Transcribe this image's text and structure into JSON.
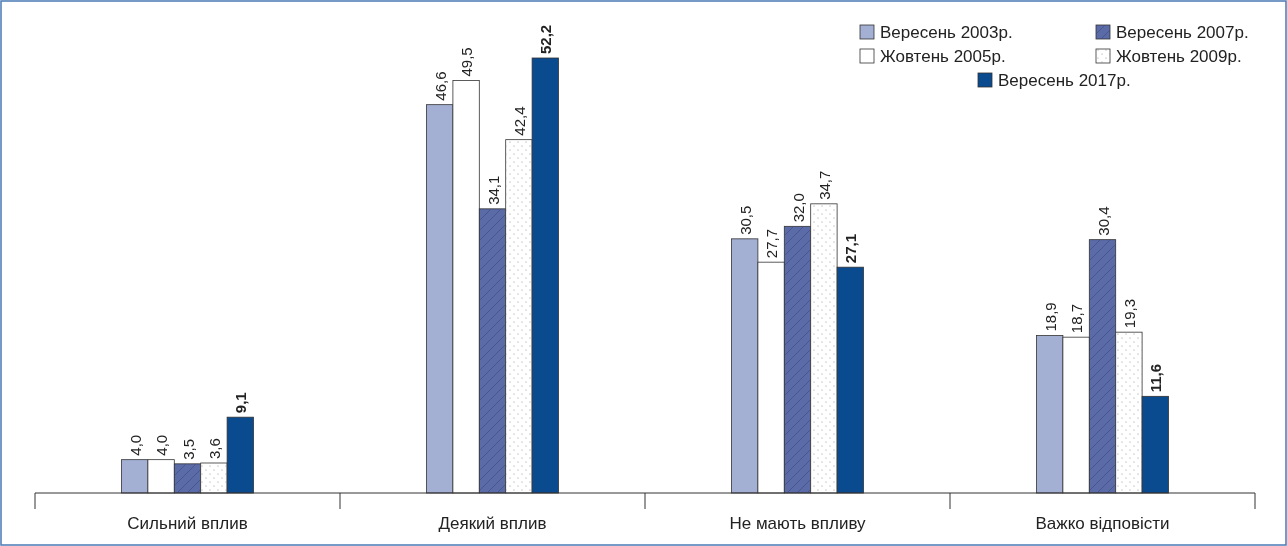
{
  "chart_data": {
    "type": "bar",
    "categories": [
      "Сильний вплив",
      "Деякий вплив",
      "Не мають впливу",
      "Важко відповісти"
    ],
    "legend": "top right",
    "series": [
      {
        "name": "Вересень 2003р.",
        "color": "#a3b0d4",
        "values": [
          4.0,
          46.6,
          30.5,
          18.9
        ],
        "value_labels": [
          "4,0",
          "46,6",
          "30,5",
          "18,9"
        ]
      },
      {
        "name": "Жовтень 2005р.",
        "color": "#ffffff",
        "values": [
          4.0,
          49.5,
          27.7,
          18.7
        ],
        "value_labels": [
          "4,0",
          "49,5",
          "27,7",
          "18,7"
        ]
      },
      {
        "name": "Вересень 2007р.",
        "color": "#5b6ba8",
        "values": [
          3.5,
          34.1,
          32.0,
          30.4
        ],
        "value_labels": [
          "3,5",
          "34,1",
          "32,0",
          "30,4"
        ]
      },
      {
        "name": "Жовтень 2009р.",
        "color": "#ffffff",
        "values": [
          3.6,
          42.4,
          34.7,
          19.3
        ],
        "value_labels": [
          "3,6",
          "42,4",
          "34,7",
          "19,3"
        ]
      },
      {
        "name": "Вересень 2017р.",
        "color": "#0a4a8f",
        "values": [
          9.1,
          52.2,
          27.1,
          11.6
        ],
        "value_labels": [
          "9,1",
          "52,2",
          "27,1",
          "11,6"
        ]
      }
    ]
  }
}
